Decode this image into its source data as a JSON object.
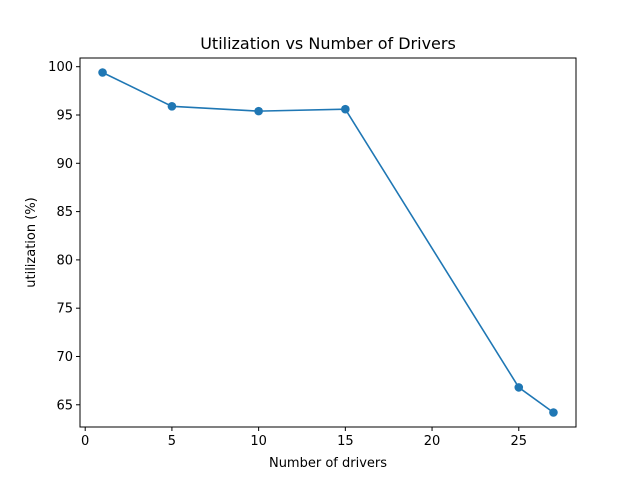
{
  "chart_data": {
    "type": "line",
    "title": "Utilization vs Number of Drivers",
    "xlabel": "Number of drivers",
    "ylabel": "utilization (%)",
    "x": [
      1,
      5,
      10,
      15,
      25,
      27
    ],
    "series": [
      {
        "values": [
          99.4,
          95.9,
          95.4,
          95.6,
          66.8,
          64.2
        ],
        "color": "#1f77b4",
        "marker": "circle"
      }
    ],
    "xlim": [
      -0.3,
      28.3
    ],
    "ylim": [
      62.7,
      100.9
    ],
    "xticks": [
      0,
      5,
      10,
      15,
      20,
      25
    ],
    "xtick_labels": [
      "0",
      "5",
      "10",
      "15",
      "20",
      "25"
    ],
    "yticks": [
      65,
      70,
      75,
      80,
      85,
      90,
      95,
      100
    ],
    "ytick_labels": [
      "65",
      "70",
      "75",
      "80",
      "85",
      "90",
      "95",
      "100"
    ],
    "grid": false,
    "legend": "none"
  }
}
